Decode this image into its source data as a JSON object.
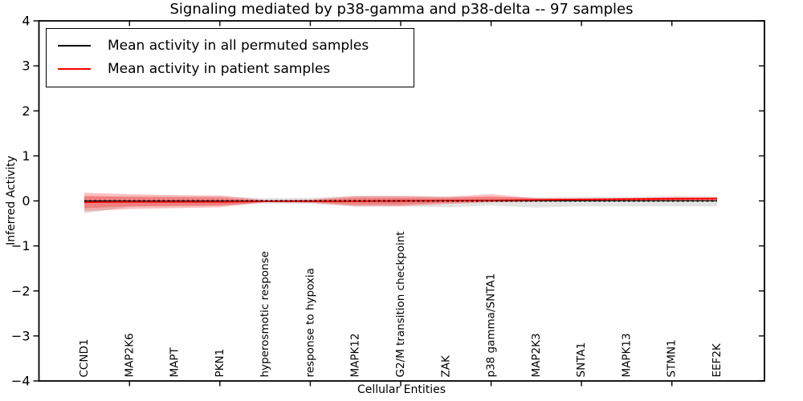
{
  "chart_data": {
    "type": "line",
    "title": "Signaling mediated by p38-gamma and p38-delta -- 97 samples",
    "xlabel": "Cellular Entities",
    "ylabel": "Inferred Activity",
    "ylim": [
      -4,
      4
    ],
    "yticks": [
      4,
      3,
      2,
      1,
      0,
      -1,
      -2,
      -3,
      -4
    ],
    "grid": false,
    "axis_color": "#000000",
    "categories": [
      "CCND1",
      "MAP2K6",
      "MAPT",
      "PKN1",
      "hyperosmotic response",
      "response to hypoxia",
      "MAPK12",
      "G2/M transition checkpoint",
      "ZAK",
      "p38 gamma/SNTA1",
      "MAP2K3",
      "SNTA1",
      "MAPK13",
      "STMN1",
      "EEF2K"
    ],
    "xtick_positions": [
      1,
      3,
      5,
      7,
      9,
      11,
      13
    ],
    "legend": {
      "position": "upper left",
      "entries": [
        {
          "label": "Mean activity in all permuted samples",
          "color": "#000000"
        },
        {
          "label": "Mean activity in patient samples",
          "color": "#ff0000"
        }
      ]
    },
    "series": [
      {
        "name": "permuted_mean",
        "color": "#000000",
        "style": "dashed",
        "width": 1.9,
        "values": [
          0,
          0,
          0,
          0,
          0,
          0,
          0,
          0,
          0,
          0,
          0,
          0,
          0,
          0,
          0
        ]
      },
      {
        "name": "patient_mean",
        "color": "#ff0000",
        "style": "solid",
        "width": 1.9,
        "values": [
          -0.03,
          -0.02,
          -0.02,
          -0.02,
          -0.01,
          -0.01,
          -0.005,
          0,
          0.005,
          0.01,
          0.02,
          0.03,
          0.04,
          0.045,
          0.05
        ]
      }
    ],
    "bands": [
      {
        "name": "permuted_band",
        "color": "#000000",
        "opacity": 0.11,
        "upper": [
          0.1,
          0.1,
          0.1,
          0.1,
          0.06,
          0.07,
          0.11,
          0.11,
          0.1,
          0.08,
          0.08,
          0.09,
          0.09,
          0.1,
          0.1
        ],
        "lower": [
          -0.28,
          -0.13,
          -0.12,
          -0.11,
          -0.06,
          -0.07,
          -0.12,
          -0.12,
          -0.14,
          -0.1,
          -0.15,
          -0.12,
          -0.12,
          -0.12,
          -0.12
        ]
      },
      {
        "name": "patient_band_outer",
        "color": "#ff0000",
        "opacity": 0.25,
        "upper": [
          0.18,
          0.15,
          0.13,
          0.12,
          0.02,
          0.03,
          0.11,
          0.11,
          0.09,
          0.15,
          0.06,
          0.06,
          0.06,
          0.09,
          0.08
        ],
        "lower": [
          -0.23,
          -0.18,
          -0.16,
          -0.14,
          -0.03,
          -0.04,
          -0.12,
          -0.12,
          -0.07,
          -0.03,
          -0.02,
          -0.01,
          -0.01,
          -0.01,
          0.0
        ]
      },
      {
        "name": "patient_band_inner",
        "color": "#ff0000",
        "opacity": 0.25,
        "upper": [
          0.11,
          0.09,
          0.08,
          0.07,
          0.01,
          0.02,
          0.07,
          0.07,
          0.06,
          0.1,
          0.05,
          0.05,
          0.05,
          0.07,
          0.07
        ],
        "lower": [
          -0.16,
          -0.12,
          -0.11,
          -0.1,
          -0.02,
          -0.03,
          -0.08,
          -0.08,
          -0.04,
          -0.02,
          -0.01,
          0.0,
          0.01,
          0.01,
          0.02
        ]
      }
    ]
  }
}
